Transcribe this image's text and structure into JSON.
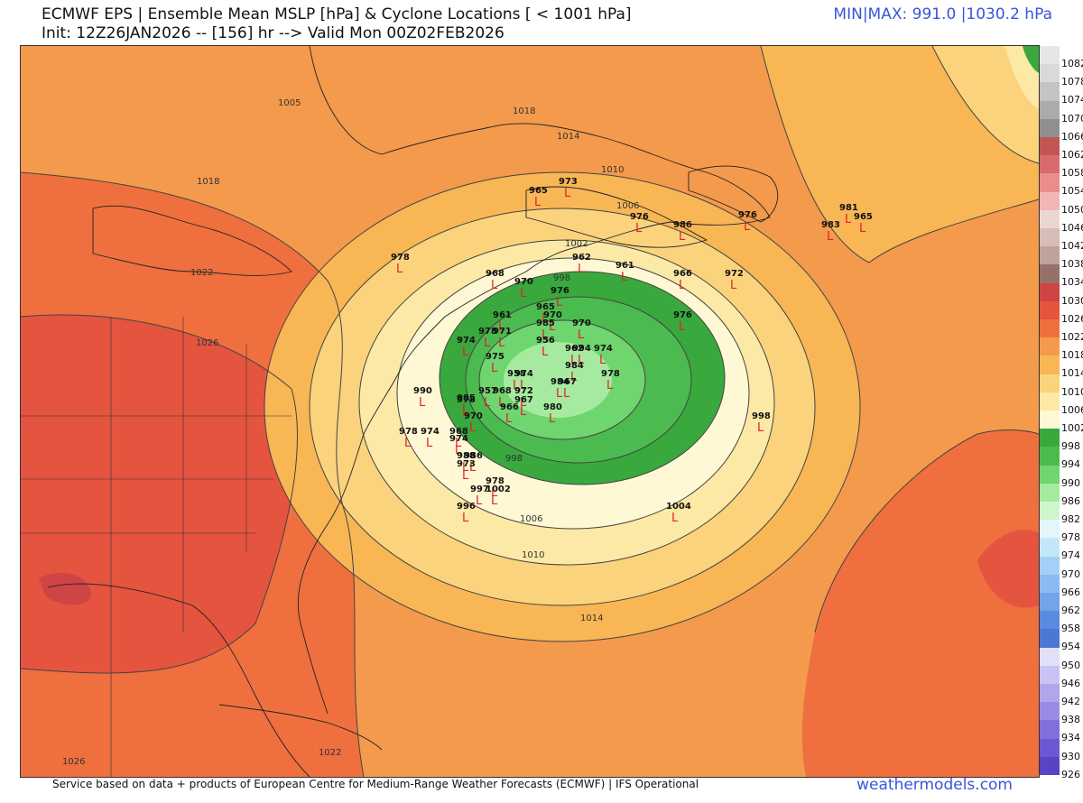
{
  "header": {
    "title": "ECMWF EPS | Ensemble Mean MSLP [hPa] & Cyclone Locations [ < 1001 hPa]",
    "subtitle": "Init: 12Z26JAN2026 -- [156] hr --> Valid Mon 00Z02FEB2026",
    "minmax": "MIN|MAX: 991.0 |1030.2 hPa"
  },
  "footer": {
    "credit": "Service based on data + products of European Centre for Medium-Range Weather Forecasts (ECMWF) | IFS Operational",
    "brand": "weathermodels.com"
  },
  "colorbar": {
    "levels": [
      {
        "label": "1082",
        "color": "#e6e6e6"
      },
      {
        "label": "1078",
        "color": "#d9d9d9"
      },
      {
        "label": "1074",
        "color": "#c4c4c4"
      },
      {
        "label": "1070",
        "color": "#ababab"
      },
      {
        "label": "1066",
        "color": "#8f8f8f"
      },
      {
        "label": "1062",
        "color": "#c25656"
      },
      {
        "label": "1058",
        "color": "#d86b6b"
      },
      {
        "label": "1054",
        "color": "#e98d8d"
      },
      {
        "label": "1050",
        "color": "#f3b6b6"
      },
      {
        "label": "1046",
        "color": "#ecd6d3"
      },
      {
        "label": "1042",
        "color": "#d8bcb6"
      },
      {
        "label": "1038",
        "color": "#bfa29b"
      },
      {
        "label": "1034",
        "color": "#957169"
      },
      {
        "label": "1030",
        "color": "#cf4444"
      },
      {
        "label": "1026",
        "color": "#e4543f"
      },
      {
        "label": "1022",
        "color": "#ef6f3f"
      },
      {
        "label": "1018",
        "color": "#f49a4c"
      },
      {
        "label": "1014",
        "color": "#f8b655"
      },
      {
        "label": "1010",
        "color": "#fbd37c"
      },
      {
        "label": "1006",
        "color": "#fde9a6"
      },
      {
        "label": "1002",
        "color": "#fff8d4"
      },
      {
        "label": "998",
        "color": "#39a83d"
      },
      {
        "label": "994",
        "color": "#4cbb4f"
      },
      {
        "label": "990",
        "color": "#6fd56e"
      },
      {
        "label": "986",
        "color": "#a6ea9f"
      },
      {
        "label": "982",
        "color": "#cdf6cc"
      },
      {
        "label": "978",
        "color": "#e3f7fb"
      },
      {
        "label": "974",
        "color": "#c3e7f8"
      },
      {
        "label": "970",
        "color": "#a5d0f5"
      },
      {
        "label": "966",
        "color": "#8cbaf0"
      },
      {
        "label": "962",
        "color": "#74a3ea"
      },
      {
        "label": "958",
        "color": "#5a8be0"
      },
      {
        "label": "954",
        "color": "#4a78d4"
      },
      {
        "label": "950",
        "color": "#e0e0f8"
      },
      {
        "label": "946",
        "color": "#c9c2f2"
      },
      {
        "label": "942",
        "color": "#b1a6ec"
      },
      {
        "label": "938",
        "color": "#998be4"
      },
      {
        "label": "934",
        "color": "#8170dc"
      },
      {
        "label": "930",
        "color": "#6c58d2"
      },
      {
        "label": "926",
        "color": "#5a44c6"
      }
    ]
  },
  "isobars": [
    {
      "label": "1005"
    },
    {
      "label": "1018"
    },
    {
      "label": "1018"
    },
    {
      "label": "1014"
    },
    {
      "label": "1010"
    },
    {
      "label": "1006"
    },
    {
      "label": "1002"
    },
    {
      "label": "1022"
    },
    {
      "label": "1026"
    },
    {
      "label": "998"
    },
    {
      "label": "998"
    },
    {
      "label": "1006"
    },
    {
      "label": "1010"
    },
    {
      "label": "1014"
    },
    {
      "label": "1026"
    },
    {
      "label": "1022"
    }
  ],
  "lows": [
    {
      "label": "978"
    },
    {
      "label": "965"
    },
    {
      "label": "973"
    },
    {
      "label": "976"
    },
    {
      "label": "986"
    },
    {
      "label": "976"
    },
    {
      "label": "981"
    },
    {
      "label": "965"
    },
    {
      "label": "983"
    },
    {
      "label": "962"
    },
    {
      "label": "961"
    },
    {
      "label": "966"
    },
    {
      "label": "972"
    },
    {
      "label": "968"
    },
    {
      "label": "970"
    },
    {
      "label": "976"
    },
    {
      "label": "965"
    },
    {
      "label": "961"
    },
    {
      "label": "970"
    },
    {
      "label": "985"
    },
    {
      "label": "970"
    },
    {
      "label": "976"
    },
    {
      "label": "974"
    },
    {
      "label": "978"
    },
    {
      "label": "971"
    },
    {
      "label": "956"
    },
    {
      "label": "962"
    },
    {
      "label": "994"
    },
    {
      "label": "974"
    },
    {
      "label": "975"
    },
    {
      "label": "984"
    },
    {
      "label": "958"
    },
    {
      "label": "974"
    },
    {
      "label": "978"
    },
    {
      "label": "984"
    },
    {
      "label": "967"
    },
    {
      "label": "990"
    },
    {
      "label": "985"
    },
    {
      "label": "957"
    },
    {
      "label": "968"
    },
    {
      "label": "972"
    },
    {
      "label": "978"
    },
    {
      "label": "967"
    },
    {
      "label": "966"
    },
    {
      "label": "980"
    },
    {
      "label": "970"
    },
    {
      "label": "978"
    },
    {
      "label": "974"
    },
    {
      "label": "968"
    },
    {
      "label": "974"
    },
    {
      "label": "988"
    },
    {
      "label": "986"
    },
    {
      "label": "973"
    },
    {
      "label": "978"
    },
    {
      "label": "997"
    },
    {
      "label": "1002"
    },
    {
      "label": "996"
    },
    {
      "label": "998"
    },
    {
      "label": "1004"
    }
  ]
}
